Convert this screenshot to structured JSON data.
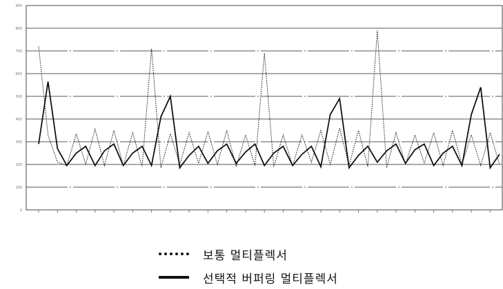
{
  "chart_data": {
    "type": "line",
    "xlabel": "",
    "ylabel": "",
    "ylim": [
      0,
      900
    ],
    "yticks": [
      "0",
      "100",
      "200",
      "300",
      "400",
      "500",
      "600",
      "700",
      "800",
      "900"
    ],
    "x": [
      1,
      2,
      3,
      4,
      5,
      6,
      7,
      8,
      9,
      10,
      11,
      12,
      13,
      14,
      15,
      16,
      17,
      18,
      19,
      20,
      21,
      22,
      23,
      24,
      25,
      26,
      27,
      28,
      29,
      30,
      31,
      32,
      33,
      34,
      35,
      36,
      37,
      38,
      39,
      40,
      41,
      42,
      43,
      44,
      45,
      46,
      47,
      48,
      49,
      50
    ],
    "grid": true,
    "legend_position": "bottom",
    "series": [
      {
        "name": "보통 멀티플렉서",
        "style": "dotted",
        "values": [
          720,
          330,
          210,
          195,
          335,
          200,
          355,
          195,
          350,
          195,
          340,
          190,
          710,
          185,
          335,
          200,
          340,
          205,
          345,
          200,
          350,
          190,
          330,
          195,
          690,
          190,
          330,
          195,
          330,
          210,
          350,
          200,
          360,
          195,
          350,
          190,
          790,
          185,
          340,
          200,
          330,
          205,
          340,
          195,
          350,
          200,
          330,
          195,
          340,
          200
        ]
      },
      {
        "name": "선택적 버퍼링 멀티플렉서",
        "style": "solid",
        "values": [
          290,
          565,
          270,
          195,
          250,
          280,
          195,
          260,
          290,
          195,
          250,
          280,
          195,
          410,
          500,
          185,
          240,
          280,
          205,
          260,
          290,
          205,
          255,
          290,
          195,
          250,
          280,
          195,
          245,
          280,
          190,
          420,
          490,
          185,
          240,
          280,
          210,
          260,
          290,
          205,
          265,
          290,
          195,
          250,
          280,
          195,
          420,
          540,
          185,
          245
        ]
      }
    ]
  },
  "legend": {
    "series1": "보통 멀티플렉서",
    "series2": "선택적 버퍼링 멀티플렉서"
  }
}
